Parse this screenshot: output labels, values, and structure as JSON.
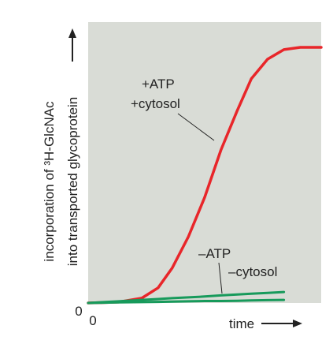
{
  "chart_data": {
    "type": "line",
    "y_label_lines": [
      "incorporation of ³H-GlcNAc",
      "into transported glycoprotein"
    ],
    "x_label": "time",
    "annotations": [
      "+ATP",
      "+cytosol",
      "–ATP",
      "–cytosol"
    ],
    "x": [
      0,
      13,
      23,
      30,
      36,
      43,
      50,
      57,
      64,
      70,
      77,
      84,
      91,
      100
    ],
    "series": [
      {
        "name": "+ATP +cytosol",
        "color": "#e8262a",
        "values": [
          0,
          0.3,
          1.7,
          5.4,
          12.4,
          23.6,
          37.6,
          54.5,
          68.5,
          79.8,
          86.8,
          90.2,
          91,
          91
        ]
      },
      {
        "name": "–ATP",
        "color": "#179a5b",
        "values": [
          0,
          0.6,
          1.1,
          1.4,
          1.7,
          2.0,
          2.3,
          2.7,
          3.0,
          3.3,
          3.6,
          3.9,
          null,
          null
        ]
      },
      {
        "name": "–cytosol",
        "color": "#179a5b",
        "values": [
          0,
          0.2,
          0.3,
          0.4,
          0.5,
          0.6,
          0.7,
          0.7,
          0.8,
          0.9,
          1.0,
          1.1,
          null,
          null
        ]
      }
    ],
    "xlim": [
      0,
      100
    ],
    "ylim": [
      0,
      100
    ],
    "xticks": [
      0
    ],
    "yticks": [
      0
    ]
  }
}
